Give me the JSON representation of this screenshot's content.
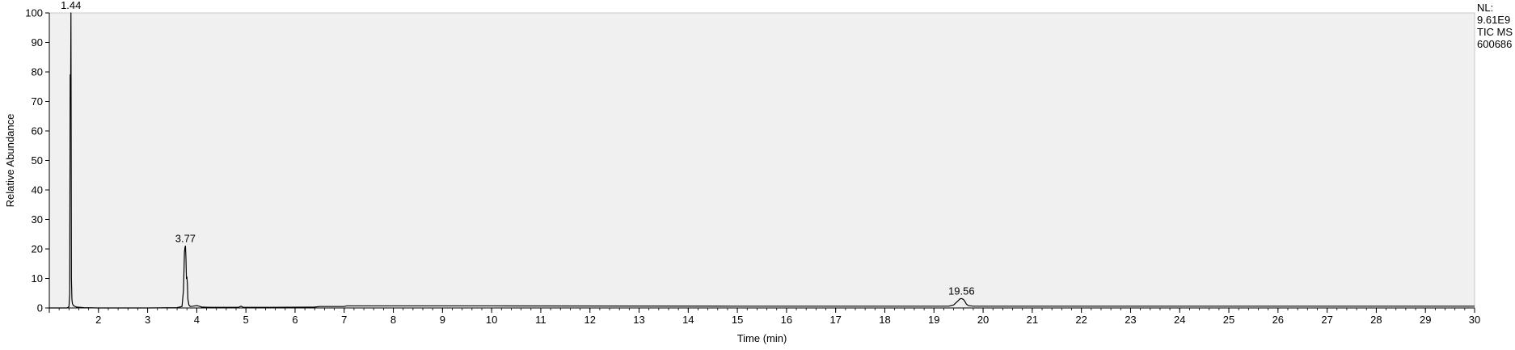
{
  "chart_data": {
    "type": "line",
    "title": "",
    "xlabel": "Time (min)",
    "ylabel": "Relative Abundance",
    "xlim": [
      1,
      30
    ],
    "ylim": [
      0,
      100
    ],
    "x_ticks": [
      2,
      3,
      4,
      5,
      6,
      7,
      8,
      9,
      10,
      11,
      12,
      13,
      14,
      15,
      16,
      17,
      18,
      19,
      20,
      21,
      22,
      23,
      24,
      25,
      26,
      27,
      28,
      29,
      30
    ],
    "y_ticks": [
      0,
      10,
      20,
      30,
      40,
      50,
      60,
      70,
      80,
      90,
      100
    ],
    "grid": false,
    "plot_background": "#f0f0f0",
    "line_color": "#000000",
    "series": [
      {
        "x": [
          1.0,
          1.36,
          1.4,
          1.415,
          1.425,
          1.435,
          1.44,
          1.445,
          1.45,
          1.46,
          1.47,
          1.49,
          1.55,
          1.7,
          2.0,
          3.0,
          3.6,
          3.7,
          3.73,
          3.75,
          3.76,
          3.77,
          3.78,
          3.79,
          3.8,
          3.81,
          3.82,
          3.84,
          3.87,
          3.92,
          4.0,
          4.05,
          4.1,
          4.3,
          4.85,
          4.9,
          4.95,
          5.5,
          6.4,
          6.5,
          7.0,
          7.05,
          10.0,
          15.0,
          19.3,
          19.4,
          19.45,
          19.5,
          19.53,
          19.56,
          19.6,
          19.63,
          19.66,
          19.7,
          19.8,
          20.0,
          25.0,
          30.0
        ],
        "y": [
          0.0,
          0.0,
          0.4,
          5.0,
          79.0,
          79.0,
          100.0,
          60.0,
          10.0,
          3.0,
          1.5,
          0.8,
          0.3,
          0.1,
          0.0,
          0.0,
          0.1,
          0.5,
          6.0,
          19.0,
          20.5,
          21.0,
          17.0,
          10.0,
          10.5,
          8.0,
          3.0,
          1.0,
          0.5,
          0.6,
          0.8,
          0.6,
          0.3,
          0.2,
          0.2,
          0.6,
          0.2,
          0.2,
          0.3,
          0.5,
          0.5,
          0.7,
          0.7,
          0.6,
          0.6,
          1.0,
          1.8,
          2.6,
          3.1,
          3.2,
          2.9,
          2.2,
          1.3,
          0.8,
          0.6,
          0.6,
          0.6,
          0.6
        ]
      }
    ],
    "peak_labels": [
      {
        "x": 1.44,
        "y": 100,
        "text": "1.44"
      },
      {
        "x": 3.77,
        "y": 21,
        "text": "3.77"
      },
      {
        "x": 19.56,
        "y": 3.2,
        "text": "19.56"
      }
    ],
    "info_lines": [
      "NL:",
      "9.61E9",
      "TIC  MS",
      "600686"
    ]
  }
}
